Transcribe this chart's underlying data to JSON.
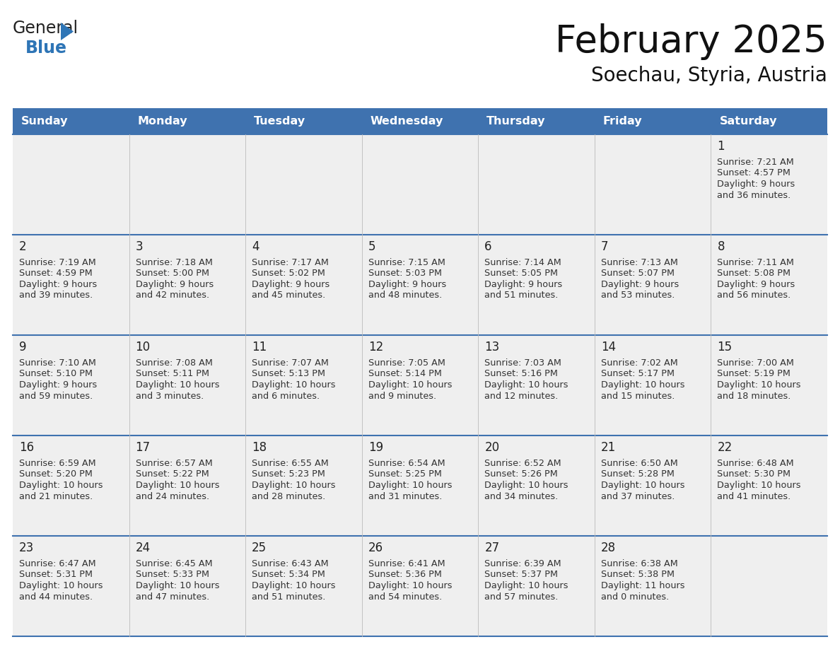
{
  "title": "February 2025",
  "subtitle": "Soechau, Styria, Austria",
  "header_bg": "#3F72AF",
  "header_text_color": "#FFFFFF",
  "cell_bg": "#EFEFEF",
  "cell_border_color": "#3F72AF",
  "cell_border_thin": "#AAAAAA",
  "day_headers": [
    "Sunday",
    "Monday",
    "Tuesday",
    "Wednesday",
    "Thursday",
    "Friday",
    "Saturday"
  ],
  "days": [
    {
      "day": 1,
      "col": 6,
      "row": 0,
      "sunrise": "7:21 AM",
      "sunset": "4:57 PM",
      "daylight": "9 hours and 36 minutes."
    },
    {
      "day": 2,
      "col": 0,
      "row": 1,
      "sunrise": "7:19 AM",
      "sunset": "4:59 PM",
      "daylight": "9 hours and 39 minutes."
    },
    {
      "day": 3,
      "col": 1,
      "row": 1,
      "sunrise": "7:18 AM",
      "sunset": "5:00 PM",
      "daylight": "9 hours and 42 minutes."
    },
    {
      "day": 4,
      "col": 2,
      "row": 1,
      "sunrise": "7:17 AM",
      "sunset": "5:02 PM",
      "daylight": "9 hours and 45 minutes."
    },
    {
      "day": 5,
      "col": 3,
      "row": 1,
      "sunrise": "7:15 AM",
      "sunset": "5:03 PM",
      "daylight": "9 hours and 48 minutes."
    },
    {
      "day": 6,
      "col": 4,
      "row": 1,
      "sunrise": "7:14 AM",
      "sunset": "5:05 PM",
      "daylight": "9 hours and 51 minutes."
    },
    {
      "day": 7,
      "col": 5,
      "row": 1,
      "sunrise": "7:13 AM",
      "sunset": "5:07 PM",
      "daylight": "9 hours and 53 minutes."
    },
    {
      "day": 8,
      "col": 6,
      "row": 1,
      "sunrise": "7:11 AM",
      "sunset": "5:08 PM",
      "daylight": "9 hours and 56 minutes."
    },
    {
      "day": 9,
      "col": 0,
      "row": 2,
      "sunrise": "7:10 AM",
      "sunset": "5:10 PM",
      "daylight": "9 hours and 59 minutes."
    },
    {
      "day": 10,
      "col": 1,
      "row": 2,
      "sunrise": "7:08 AM",
      "sunset": "5:11 PM",
      "daylight": "10 hours and 3 minutes."
    },
    {
      "day": 11,
      "col": 2,
      "row": 2,
      "sunrise": "7:07 AM",
      "sunset": "5:13 PM",
      "daylight": "10 hours and 6 minutes."
    },
    {
      "day": 12,
      "col": 3,
      "row": 2,
      "sunrise": "7:05 AM",
      "sunset": "5:14 PM",
      "daylight": "10 hours and 9 minutes."
    },
    {
      "day": 13,
      "col": 4,
      "row": 2,
      "sunrise": "7:03 AM",
      "sunset": "5:16 PM",
      "daylight": "10 hours and 12 minutes."
    },
    {
      "day": 14,
      "col": 5,
      "row": 2,
      "sunrise": "7:02 AM",
      "sunset": "5:17 PM",
      "daylight": "10 hours and 15 minutes."
    },
    {
      "day": 15,
      "col": 6,
      "row": 2,
      "sunrise": "7:00 AM",
      "sunset": "5:19 PM",
      "daylight": "10 hours and 18 minutes."
    },
    {
      "day": 16,
      "col": 0,
      "row": 3,
      "sunrise": "6:59 AM",
      "sunset": "5:20 PM",
      "daylight": "10 hours and 21 minutes."
    },
    {
      "day": 17,
      "col": 1,
      "row": 3,
      "sunrise": "6:57 AM",
      "sunset": "5:22 PM",
      "daylight": "10 hours and 24 minutes."
    },
    {
      "day": 18,
      "col": 2,
      "row": 3,
      "sunrise": "6:55 AM",
      "sunset": "5:23 PM",
      "daylight": "10 hours and 28 minutes."
    },
    {
      "day": 19,
      "col": 3,
      "row": 3,
      "sunrise": "6:54 AM",
      "sunset": "5:25 PM",
      "daylight": "10 hours and 31 minutes."
    },
    {
      "day": 20,
      "col": 4,
      "row": 3,
      "sunrise": "6:52 AM",
      "sunset": "5:26 PM",
      "daylight": "10 hours and 34 minutes."
    },
    {
      "day": 21,
      "col": 5,
      "row": 3,
      "sunrise": "6:50 AM",
      "sunset": "5:28 PM",
      "daylight": "10 hours and 37 minutes."
    },
    {
      "day": 22,
      "col": 6,
      "row": 3,
      "sunrise": "6:48 AM",
      "sunset": "5:30 PM",
      "daylight": "10 hours and 41 minutes."
    },
    {
      "day": 23,
      "col": 0,
      "row": 4,
      "sunrise": "6:47 AM",
      "sunset": "5:31 PM",
      "daylight": "10 hours and 44 minutes."
    },
    {
      "day": 24,
      "col": 1,
      "row": 4,
      "sunrise": "6:45 AM",
      "sunset": "5:33 PM",
      "daylight": "10 hours and 47 minutes."
    },
    {
      "day": 25,
      "col": 2,
      "row": 4,
      "sunrise": "6:43 AM",
      "sunset": "5:34 PM",
      "daylight": "10 hours and 51 minutes."
    },
    {
      "day": 26,
      "col": 3,
      "row": 4,
      "sunrise": "6:41 AM",
      "sunset": "5:36 PM",
      "daylight": "10 hours and 54 minutes."
    },
    {
      "day": 27,
      "col": 4,
      "row": 4,
      "sunrise": "6:39 AM",
      "sunset": "5:37 PM",
      "daylight": "10 hours and 57 minutes."
    },
    {
      "day": 28,
      "col": 5,
      "row": 4,
      "sunrise": "6:38 AM",
      "sunset": "5:38 PM",
      "daylight": "11 hours and 0 minutes."
    }
  ],
  "num_rows": 5,
  "num_cols": 7,
  "logo_text_general": "General",
  "logo_text_blue": "Blue",
  "logo_triangle_color": "#2E75B6",
  "logo_general_color": "#222222",
  "logo_blue_color": "#2E75B6",
  "fig_width": 11.88,
  "fig_height": 9.18,
  "dpi": 100
}
